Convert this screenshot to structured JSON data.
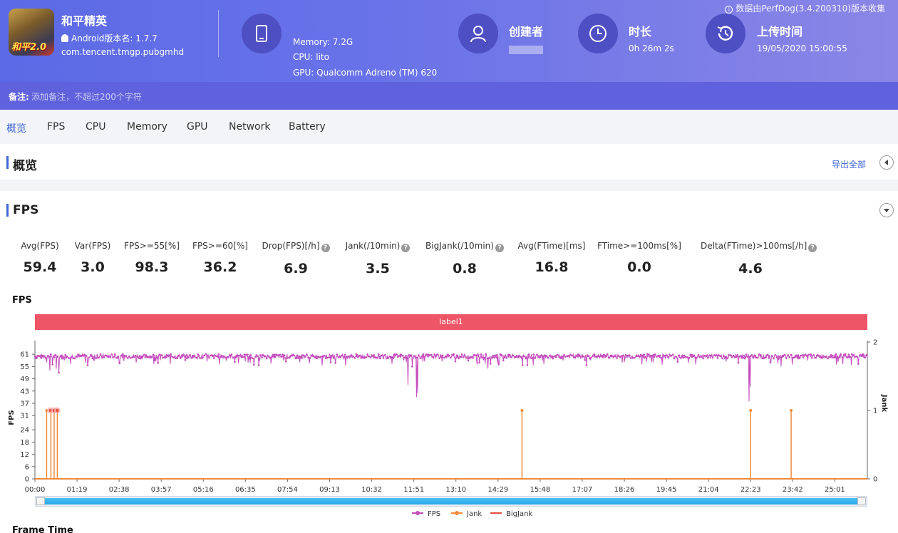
{
  "header": {
    "app_name": "和平精英",
    "app_version": "Android版本名: 1.7.7",
    "app_package": "com.tencent.tmgp.pubgmhd",
    "icon_badge": "和平2.0",
    "source_note": "数据由PerfDog(3.4.200310)版本收集",
    "device": {
      "memory": "Memory: 7.2G",
      "cpu": "CPU: lito",
      "gpu": "GPU: Qualcomm Adreno (TM) 620"
    },
    "creator_title": "创建者",
    "duration_title": "时长",
    "duration_value": "0h 26m 2s",
    "upload_title": "上传时间",
    "upload_value": "19/05/2020 15:00:55",
    "note_label": "备注:",
    "note_placeholder": "添加备注，不超过200个字符"
  },
  "tabs": [
    "概览",
    "FPS",
    "CPU",
    "Memory",
    "GPU",
    "Network",
    "Battery"
  ],
  "overview": {
    "title": "概览",
    "export_label": "导出全部"
  },
  "fps_section": {
    "title": "FPS",
    "metrics": [
      {
        "label": "Avg(FPS)",
        "value": "59.4",
        "help": false
      },
      {
        "label": "Var(FPS)",
        "value": "3.0",
        "help": false
      },
      {
        "label": "FPS>=55[%]",
        "value": "98.3",
        "help": false
      },
      {
        "label": "FPS>=60[%]",
        "value": "36.2",
        "help": false
      },
      {
        "label": "Drop(FPS)[/h]",
        "value": "6.9",
        "help": true
      },
      {
        "label": "Jank(/10min)",
        "value": "3.5",
        "help": true
      },
      {
        "label": "BigJank(/10min)",
        "value": "0.8",
        "help": true
      },
      {
        "label": "Avg(FTime)[ms]",
        "value": "16.8",
        "help": false
      },
      {
        "label": "FTime>=100ms[%]",
        "value": "0.0",
        "help": false
      },
      {
        "label": "Delta(FTime)>100ms[/h]",
        "value": "4.6",
        "help": true
      }
    ],
    "chart_title": "FPS",
    "label_band": "label1",
    "next_chart_title": "Frame Time"
  },
  "chart_data": {
    "type": "line",
    "ylabel": "FPS",
    "y2label": "Jank",
    "y_ticks": [
      0,
      6,
      12,
      18,
      24,
      31,
      37,
      43,
      49,
      55,
      61
    ],
    "y2_ticks": [
      0,
      1,
      2
    ],
    "ylim": [
      0,
      67
    ],
    "y2lim": [
      0,
      2
    ],
    "x_ticks": [
      "00:00",
      "01:19",
      "02:38",
      "03:57",
      "05:16",
      "06:35",
      "07:54",
      "09:13",
      "10:32",
      "11:51",
      "13:10",
      "14:29",
      "15:48",
      "17:07",
      "18:26",
      "19:45",
      "21:04",
      "22:23",
      "23:42",
      "25:01"
    ],
    "xlim_seconds": [
      0,
      1562
    ],
    "legend": [
      "FPS",
      "Jank",
      "BigJank"
    ],
    "colors": {
      "FPS": "#c44dbd",
      "Jank": "#f08a3a",
      "BigJank": "#e74c3c"
    },
    "fps_baseline": 60,
    "fps_dips": [
      {
        "t": 22,
        "v": 57
      },
      {
        "t": 28,
        "v": 53
      },
      {
        "t": 33,
        "v": 56
      },
      {
        "t": 40,
        "v": 54
      },
      {
        "t": 45,
        "v": 52
      },
      {
        "t": 95,
        "v": 57
      },
      {
        "t": 190,
        "v": 57
      },
      {
        "t": 400,
        "v": 57
      },
      {
        "t": 700,
        "v": 46
      },
      {
        "t": 708,
        "v": 55
      },
      {
        "t": 716,
        "v": 40
      },
      {
        "t": 718,
        "v": 42
      },
      {
        "t": 830,
        "v": 56
      },
      {
        "t": 850,
        "v": 54
      },
      {
        "t": 870,
        "v": 56
      },
      {
        "t": 1160,
        "v": 57
      },
      {
        "t": 1240,
        "v": 56
      },
      {
        "t": 1340,
        "v": 38
      },
      {
        "t": 1342,
        "v": 45
      },
      {
        "t": 1380,
        "v": 57
      },
      {
        "t": 1400,
        "v": 55
      }
    ],
    "jank_events": [
      {
        "t": 22,
        "v": 1
      },
      {
        "t": 30,
        "v": 1
      },
      {
        "t": 36,
        "v": 1
      },
      {
        "t": 42,
        "v": 1
      },
      {
        "t": 914,
        "v": 1
      },
      {
        "t": 1343,
        "v": 1
      },
      {
        "t": 1419,
        "v": 1
      }
    ],
    "bigjank_events": [
      {
        "t": 29,
        "v": 1
      },
      {
        "t": 36,
        "v": 1
      },
      {
        "t": 42,
        "v": 1
      }
    ]
  }
}
